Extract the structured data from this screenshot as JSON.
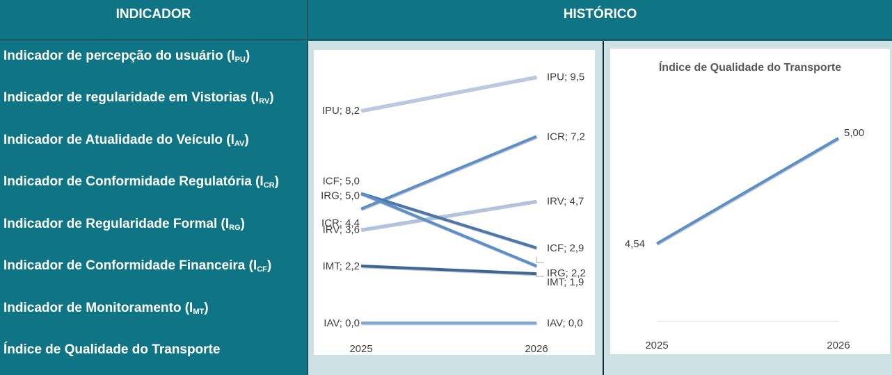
{
  "header": {
    "indicator": "INDICADOR",
    "history": "HISTÓRICO"
  },
  "indicators": [
    {
      "text": "Indicador de percepção do usuário (I",
      "sub": "PU",
      "close": ")"
    },
    {
      "text": "Indicador de regularidade em Vistorias (I",
      "sub": "RV",
      "close": ")"
    },
    {
      "text": "Indicador de Atualidade do Veículo (I",
      "sub": "AV",
      "close": ")"
    },
    {
      "text": "Indicador de Conformidade Regulatória (I",
      "sub": "CR",
      "close": ")"
    },
    {
      "text": "Indicador de Regularidade Formal (I",
      "sub": "RG",
      "close": ")"
    },
    {
      "text": "Indicador de Conformidade Financeira (I",
      "sub": "CF",
      "close": ")"
    },
    {
      "text": "Indicador de Monitoramento (I",
      "sub": "MT",
      "close": ")"
    },
    {
      "text": "Índice de Qualidade do Transporte",
      "sub": "",
      "close": ""
    }
  ],
  "chart_data": [
    {
      "type": "line",
      "title": "",
      "x": [
        "2025",
        "2026"
      ],
      "ylim": [
        0,
        10
      ],
      "grid": false,
      "series": [
        {
          "name": "IPU",
          "values": [
            8.2,
            9.5
          ],
          "labels": [
            "IPU; 8,2",
            "IPU; 9,5"
          ],
          "color": "#b8c9e3"
        },
        {
          "name": "ICR",
          "values": [
            4.4,
            7.2
          ],
          "labels": [
            "ICR; 4,4",
            "ICR; 7,2"
          ],
          "color": "#5b8fc7"
        },
        {
          "name": "IRV",
          "values": [
            3.6,
            4.7
          ],
          "labels": [
            "IRV; 3,6",
            "IRV; 4,7"
          ],
          "color": "#aec3e0"
        },
        {
          "name": "ICF",
          "values": [
            5.0,
            2.9
          ],
          "labels": [
            "ICF; 5,0",
            "ICF; 2,9"
          ],
          "color": "#4b76aa"
        },
        {
          "name": "IRG",
          "values": [
            5.0,
            2.2
          ],
          "labels": [
            "IRG; 5,0",
            "IRG; 2,2"
          ],
          "color": "#5b8fc7"
        },
        {
          "name": "IMT",
          "values": [
            2.2,
            1.9
          ],
          "labels": [
            "IMT; 2,2",
            "IMT; 1,9"
          ],
          "color": "#3d6595"
        },
        {
          "name": "IAV",
          "values": [
            0.0,
            0.0
          ],
          "labels": [
            "IAV; 0,0",
            "IAV; 0,0"
          ],
          "color": "#7ea6d6"
        }
      ]
    },
    {
      "type": "line",
      "title": "Índice de Qualidade do Transporte",
      "x": [
        "2025",
        "2026"
      ],
      "ylim": [
        4.2,
        5.3
      ],
      "grid": false,
      "series": [
        {
          "values": [
            4.54,
            5.0
          ],
          "labels": [
            "4,54",
            "5,00"
          ],
          "color": "#5b8fc7"
        }
      ]
    }
  ]
}
